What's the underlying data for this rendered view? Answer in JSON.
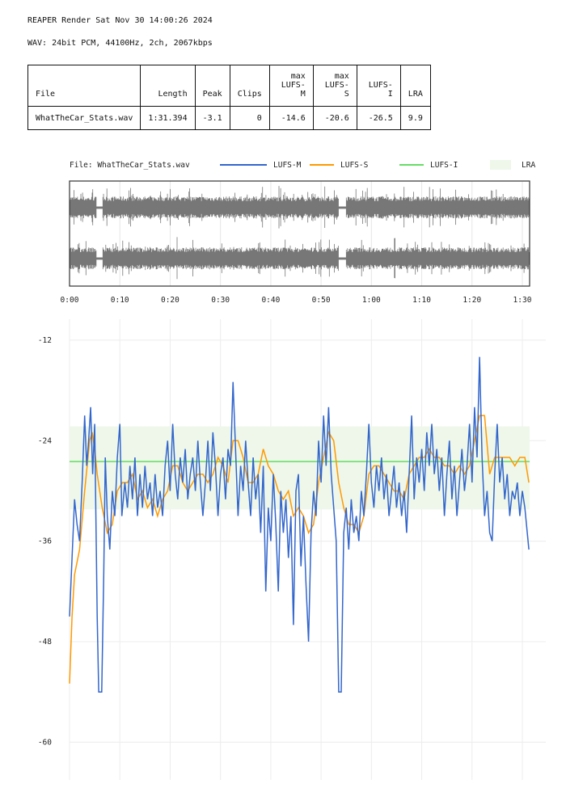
{
  "header": {
    "title": "REAPER Render Sat Nov 30 14:00:26 2024",
    "format": "WAV: 24bit PCM, 44100Hz, 2ch, 2067kbps"
  },
  "table": {
    "columns": [
      "File",
      "Length",
      "Peak",
      "Clips",
      "max\nLUFS-M",
      "max\nLUFS-S",
      "LUFS-I",
      "LRA"
    ],
    "columns_line1": [
      "",
      "",
      "",
      "",
      "max",
      "max",
      "",
      ""
    ],
    "columns_line2": [
      "File",
      "Length",
      "Peak",
      "Clips",
      "LUFS-M",
      "LUFS-S",
      "LUFS-I",
      "LRA"
    ],
    "rows": [
      [
        "WhatTheCar_Stats.wav",
        "1:31.394",
        "-3.1",
        "0",
        "-14.6",
        "-20.6",
        "-26.5",
        "9.9"
      ]
    ]
  },
  "colors": {
    "lufs_m": "#3366cc",
    "lufs_s": "#ff9900",
    "lufs_i": "#66dd66",
    "lra": "#eef7ea",
    "waveform": "#777777"
  },
  "chart_data": {
    "type": "line",
    "title": "File: WhatTheCar_Stats.wav",
    "legend": [
      "LUFS-M",
      "LUFS-S",
      "LUFS-I",
      "LRA"
    ],
    "legend_position": "top",
    "xlabel": "",
    "ylabel": "",
    "duration_s": 91.394,
    "xticks": [
      "0:00",
      "0:10",
      "0:20",
      "0:30",
      "0:40",
      "0:50",
      "1:00",
      "1:10",
      "1:20",
      "1:30"
    ],
    "xtick_values": [
      0,
      10,
      20,
      30,
      40,
      50,
      60,
      70,
      80,
      90
    ],
    "yticks": [
      -12,
      -24,
      -36,
      -48,
      -60
    ],
    "ylim": [
      -64.5,
      -9.5
    ],
    "grid": true,
    "lufs_i": -26.5,
    "lra_range": [
      -32.2,
      -22.3
    ],
    "quiet_regions_s": [
      [
        5.3,
        6.6
      ],
      [
        53.5,
        55.0
      ]
    ],
    "lufs_m": [
      [
        0,
        -45
      ],
      [
        0.5,
        -38
      ],
      [
        1,
        -31
      ],
      [
        1.5,
        -34
      ],
      [
        2,
        -36
      ],
      [
        2.5,
        -29
      ],
      [
        3,
        -21
      ],
      [
        3.4,
        -27
      ],
      [
        3.8,
        -24
      ],
      [
        4.2,
        -20
      ],
      [
        4.6,
        -28
      ],
      [
        5,
        -22
      ],
      [
        5.5,
        -45
      ],
      [
        5.8,
        -54
      ],
      [
        6.4,
        -54
      ],
      [
        6.8,
        -40
      ],
      [
        7.1,
        -26
      ],
      [
        7.5,
        -33
      ],
      [
        8,
        -37
      ],
      [
        8.5,
        -30
      ],
      [
        9,
        -33
      ],
      [
        9.5,
        -26
      ],
      [
        10,
        -22
      ],
      [
        10.4,
        -33
      ],
      [
        11,
        -29
      ],
      [
        11.5,
        -32
      ],
      [
        12,
        -27
      ],
      [
        12.5,
        -31
      ],
      [
        13,
        -26
      ],
      [
        13.5,
        -33
      ],
      [
        14,
        -28
      ],
      [
        14.5,
        -32
      ],
      [
        15,
        -27
      ],
      [
        15.5,
        -31
      ],
      [
        16,
        -29
      ],
      [
        16.5,
        -33
      ],
      [
        17,
        -28
      ],
      [
        17.5,
        -32
      ],
      [
        18,
        -30
      ],
      [
        18.5,
        -33
      ],
      [
        19,
        -27
      ],
      [
        19.5,
        -24
      ],
      [
        20,
        -30
      ],
      [
        20.5,
        -22
      ],
      [
        21,
        -28
      ],
      [
        21.5,
        -31
      ],
      [
        22,
        -26
      ],
      [
        22.5,
        -29
      ],
      [
        23,
        -25
      ],
      [
        23.5,
        -31
      ],
      [
        24,
        -28
      ],
      [
        24.5,
        -26
      ],
      [
        25,
        -30
      ],
      [
        25.5,
        -24
      ],
      [
        26,
        -29
      ],
      [
        26.5,
        -33
      ],
      [
        27,
        -29
      ],
      [
        27.5,
        -24
      ],
      [
        28,
        -30
      ],
      [
        28.5,
        -23
      ],
      [
        29,
        -27
      ],
      [
        29.5,
        -33
      ],
      [
        30,
        -28
      ],
      [
        30.5,
        -26
      ],
      [
        31,
        -31
      ],
      [
        31.5,
        -25
      ],
      [
        32,
        -27
      ],
      [
        32.5,
        -17
      ],
      [
        33,
        -25
      ],
      [
        33.5,
        -33
      ],
      [
        34,
        -27
      ],
      [
        34.5,
        -30
      ],
      [
        35,
        -24
      ],
      [
        35.5,
        -29
      ],
      [
        36,
        -33
      ],
      [
        36.5,
        -26
      ],
      [
        37,
        -31
      ],
      [
        37.5,
        -28
      ],
      [
        38,
        -35
      ],
      [
        38.5,
        -27
      ],
      [
        39,
        -42
      ],
      [
        39.5,
        -32
      ],
      [
        40,
        -36
      ],
      [
        40.5,
        -28
      ],
      [
        41,
        -34
      ],
      [
        41.5,
        -42
      ],
      [
        42,
        -30
      ],
      [
        42.5,
        -35
      ],
      [
        43,
        -31
      ],
      [
        43.5,
        -38
      ],
      [
        44,
        -33
      ],
      [
        44.5,
        -46
      ],
      [
        45,
        -30
      ],
      [
        45.5,
        -28
      ],
      [
        46,
        -39
      ],
      [
        46.5,
        -33
      ],
      [
        47,
        -41
      ],
      [
        47.5,
        -48
      ],
      [
        48,
        -35
      ],
      [
        48.5,
        -30
      ],
      [
        49,
        -33
      ],
      [
        49.5,
        -24
      ],
      [
        50,
        -29
      ],
      [
        50.5,
        -21
      ],
      [
        51,
        -27
      ],
      [
        51.5,
        -20
      ],
      [
        52,
        -28
      ],
      [
        52.5,
        -32
      ],
      [
        53,
        -36
      ],
      [
        53.5,
        -54
      ],
      [
        54,
        -54
      ],
      [
        54.5,
        -35
      ],
      [
        55,
        -32
      ],
      [
        55.5,
        -37
      ],
      [
        56,
        -31
      ],
      [
        56.5,
        -35
      ],
      [
        57,
        -33
      ],
      [
        57.5,
        -36
      ],
      [
        58,
        -30
      ],
      [
        58.5,
        -33
      ],
      [
        59,
        -28
      ],
      [
        59.5,
        -22
      ],
      [
        60,
        -29
      ],
      [
        60.5,
        -32
      ],
      [
        61,
        -27
      ],
      [
        61.5,
        -30
      ],
      [
        62,
        -26
      ],
      [
        62.5,
        -31
      ],
      [
        63,
        -28
      ],
      [
        63.5,
        -33
      ],
      [
        64,
        -30
      ],
      [
        64.5,
        -27
      ],
      [
        65,
        -32
      ],
      [
        65.5,
        -29
      ],
      [
        66,
        -33
      ],
      [
        66.5,
        -30
      ],
      [
        67,
        -35
      ],
      [
        67.5,
        -28
      ],
      [
        68,
        -21
      ],
      [
        68.5,
        -31
      ],
      [
        69,
        -26
      ],
      [
        69.5,
        -29
      ],
      [
        70,
        -25
      ],
      [
        70.5,
        -30
      ],
      [
        71,
        -23
      ],
      [
        71.5,
        -27
      ],
      [
        72,
        -22
      ],
      [
        72.5,
        -28
      ],
      [
        73,
        -25
      ],
      [
        73.5,
        -30
      ],
      [
        74,
        -26
      ],
      [
        74.5,
        -33
      ],
      [
        75,
        -28
      ],
      [
        75.5,
        -24
      ],
      [
        76,
        -31
      ],
      [
        76.5,
        -27
      ],
      [
        77,
        -33
      ],
      [
        77.5,
        -29
      ],
      [
        78,
        -25
      ],
      [
        78.5,
        -30
      ],
      [
        79,
        -27
      ],
      [
        79.5,
        -22
      ],
      [
        80,
        -29
      ],
      [
        80.5,
        -20
      ],
      [
        81,
        -26
      ],
      [
        81.5,
        -14
      ],
      [
        82,
        -26
      ],
      [
        82.5,
        -33
      ],
      [
        83,
        -30
      ],
      [
        83.5,
        -35
      ],
      [
        84,
        -36
      ],
      [
        84.5,
        -28
      ],
      [
        85,
        -22
      ],
      [
        85.5,
        -29
      ],
      [
        86,
        -26
      ],
      [
        86.5,
        -31
      ],
      [
        87,
        -28
      ],
      [
        87.5,
        -33
      ],
      [
        88,
        -30
      ],
      [
        88.5,
        -31
      ],
      [
        89,
        -29
      ],
      [
        89.5,
        -33
      ],
      [
        90,
        -30
      ],
      [
        90.5,
        -32
      ],
      [
        91.3,
        -37
      ]
    ],
    "lufs_s": [
      [
        0,
        -53
      ],
      [
        0.5,
        -45
      ],
      [
        1,
        -40
      ],
      [
        2,
        -37
      ],
      [
        3,
        -30
      ],
      [
        4,
        -24
      ],
      [
        4.5,
        -23
      ],
      [
        5,
        -25
      ],
      [
        5.5,
        -28
      ],
      [
        6.5,
        -32
      ],
      [
        7.5,
        -35
      ],
      [
        8.5,
        -34
      ],
      [
        9.5,
        -30
      ],
      [
        10.5,
        -29
      ],
      [
        11.5,
        -29
      ],
      [
        12.5,
        -28
      ],
      [
        13.5,
        -31
      ],
      [
        14.5,
        -30
      ],
      [
        15.5,
        -32
      ],
      [
        16.5,
        -31
      ],
      [
        17.5,
        -33
      ],
      [
        18.5,
        -31
      ],
      [
        19.5,
        -30
      ],
      [
        20.5,
        -27
      ],
      [
        21.5,
        -27
      ],
      [
        22.5,
        -29
      ],
      [
        23.5,
        -30
      ],
      [
        24.5,
        -29
      ],
      [
        25.5,
        -28
      ],
      [
        26.5,
        -28
      ],
      [
        27.5,
        -29
      ],
      [
        28.5,
        -28
      ],
      [
        29.5,
        -26
      ],
      [
        30.5,
        -27
      ],
      [
        31.5,
        -29
      ],
      [
        32.5,
        -24
      ],
      [
        33.5,
        -24
      ],
      [
        34.5,
        -26
      ],
      [
        35.5,
        -29
      ],
      [
        36.5,
        -29
      ],
      [
        37.5,
        -28
      ],
      [
        38.5,
        -25
      ],
      [
        39.5,
        -27
      ],
      [
        40.5,
        -28
      ],
      [
        41.5,
        -30
      ],
      [
        42.5,
        -31
      ],
      [
        43.5,
        -30
      ],
      [
        44.5,
        -33
      ],
      [
        45.5,
        -32
      ],
      [
        46.5,
        -33
      ],
      [
        47.5,
        -35
      ],
      [
        48.5,
        -34
      ],
      [
        49.5,
        -29
      ],
      [
        50.5,
        -26
      ],
      [
        51.5,
        -23
      ],
      [
        52.5,
        -24
      ],
      [
        53.5,
        -29
      ],
      [
        54.5,
        -32
      ],
      [
        55.5,
        -34
      ],
      [
        56.5,
        -34
      ],
      [
        57.5,
        -35
      ],
      [
        58.5,
        -33
      ],
      [
        59.5,
        -28
      ],
      [
        60.5,
        -27
      ],
      [
        61.5,
        -27
      ],
      [
        62.5,
        -28
      ],
      [
        63.5,
        -29
      ],
      [
        64.5,
        -30
      ],
      [
        65.5,
        -30
      ],
      [
        66.5,
        -31
      ],
      [
        67.5,
        -28
      ],
      [
        68.5,
        -27
      ],
      [
        69.5,
        -26
      ],
      [
        70.5,
        -26
      ],
      [
        71.5,
        -25
      ],
      [
        72.5,
        -26
      ],
      [
        73.5,
        -26
      ],
      [
        74.5,
        -27
      ],
      [
        75.5,
        -27
      ],
      [
        76.5,
        -28
      ],
      [
        77.5,
        -27
      ],
      [
        78.5,
        -28
      ],
      [
        79.5,
        -27
      ],
      [
        80.5,
        -24
      ],
      [
        81.5,
        -21
      ],
      [
        82.5,
        -21
      ],
      [
        83.5,
        -28
      ],
      [
        84.5,
        -26
      ],
      [
        85.5,
        -26
      ],
      [
        86.5,
        -26
      ],
      [
        87.5,
        -26
      ],
      [
        88.5,
        -27
      ],
      [
        89.5,
        -26
      ],
      [
        90.5,
        -26
      ],
      [
        91.3,
        -29
      ]
    ]
  }
}
